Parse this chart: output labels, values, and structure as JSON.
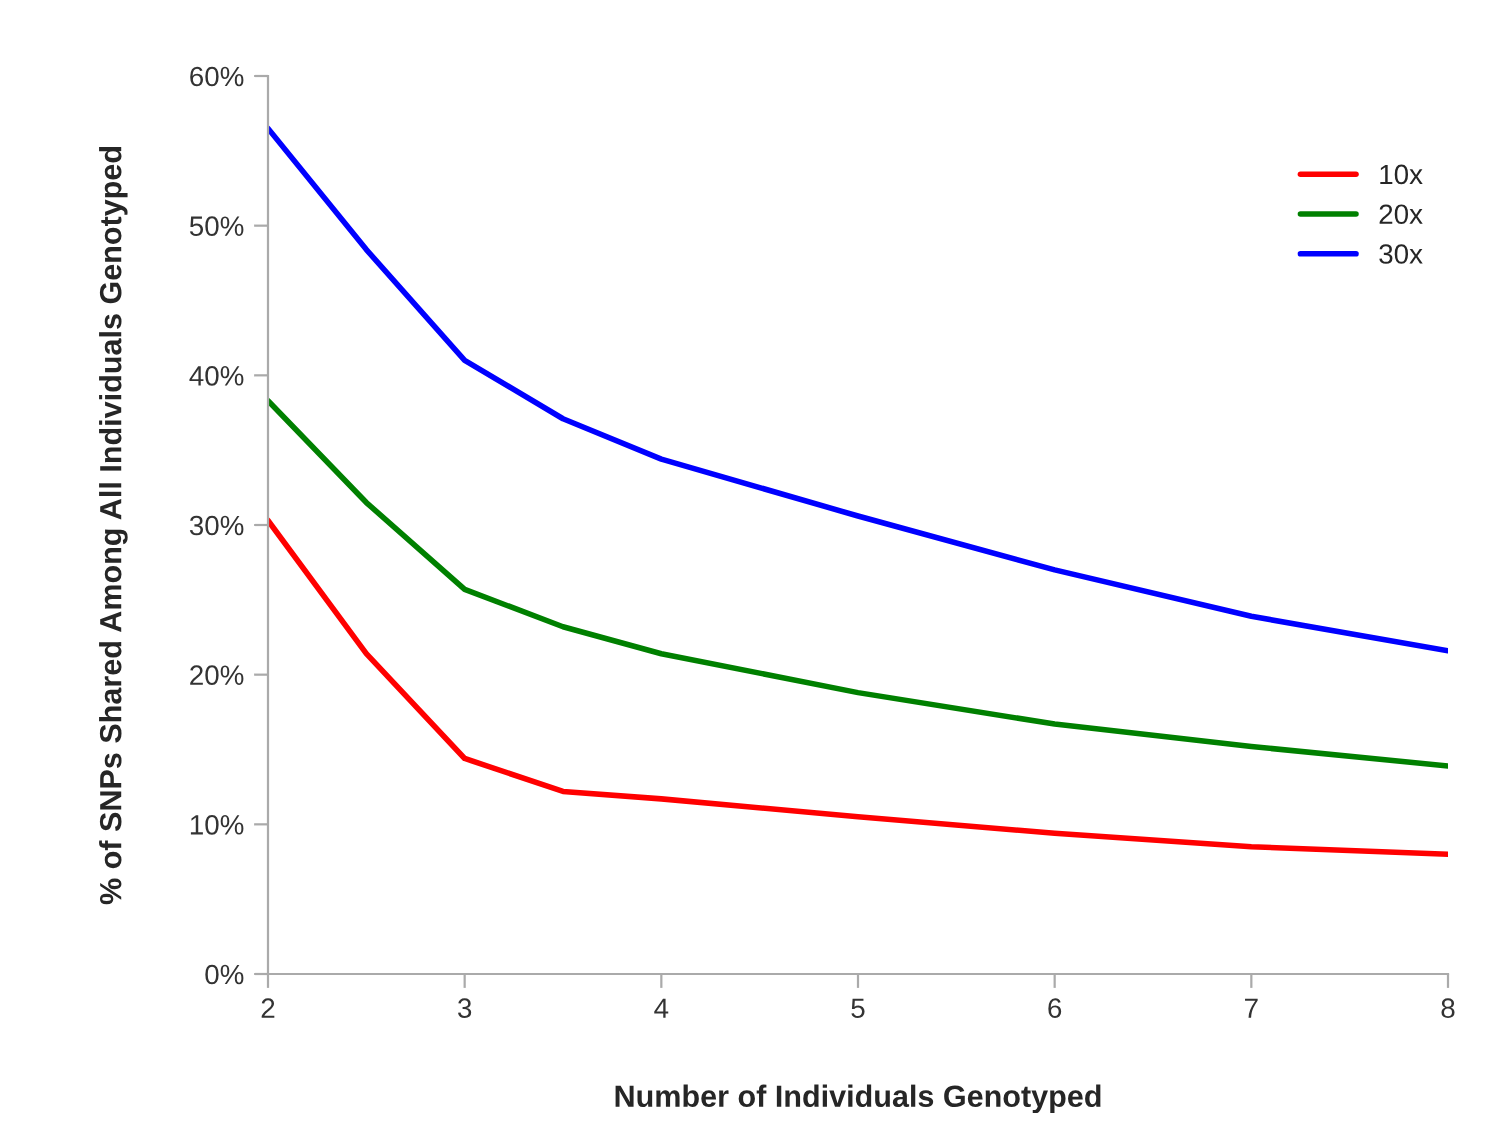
{
  "chart_data": {
    "type": "line",
    "xlabel": "Number of Individuals Genotyped",
    "ylabel": "% of SNPs Shared Among All Individuals Genotyped",
    "x": [
      2,
      2.5,
      3,
      3.5,
      4,
      5,
      6,
      7,
      8
    ],
    "series": [
      {
        "name": "10x",
        "color": "#ff0000",
        "values": [
          30.3,
          21.4,
          14.4,
          12.2,
          11.7,
          10.5,
          9.4,
          8.5,
          8.0
        ]
      },
      {
        "name": "20x",
        "color": "#008000",
        "values": [
          38.3,
          31.5,
          25.7,
          23.2,
          21.4,
          18.8,
          16.7,
          15.2,
          13.9
        ]
      },
      {
        "name": "30x",
        "color": "#0000ff",
        "values": [
          56.5,
          48.4,
          41.0,
          37.1,
          34.4,
          30.6,
          27.0,
          23.9,
          21.6
        ]
      }
    ],
    "xlim": [
      2,
      8
    ],
    "xticks": [
      2,
      3,
      4,
      5,
      6,
      7,
      8
    ],
    "ylim": [
      0,
      60
    ],
    "yticks": [
      {
        "value": 0,
        "label": "0%"
      },
      {
        "value": 10,
        "label": "10%"
      },
      {
        "value": 20,
        "label": "20%"
      },
      {
        "value": 30,
        "label": "30%"
      },
      {
        "value": 40,
        "label": "40%"
      },
      {
        "value": 50,
        "label": "50%"
      },
      {
        "value": 60,
        "label": "60%"
      }
    ],
    "grid": false,
    "legend": "top right",
    "marker": "none",
    "line_style": "solid"
  }
}
